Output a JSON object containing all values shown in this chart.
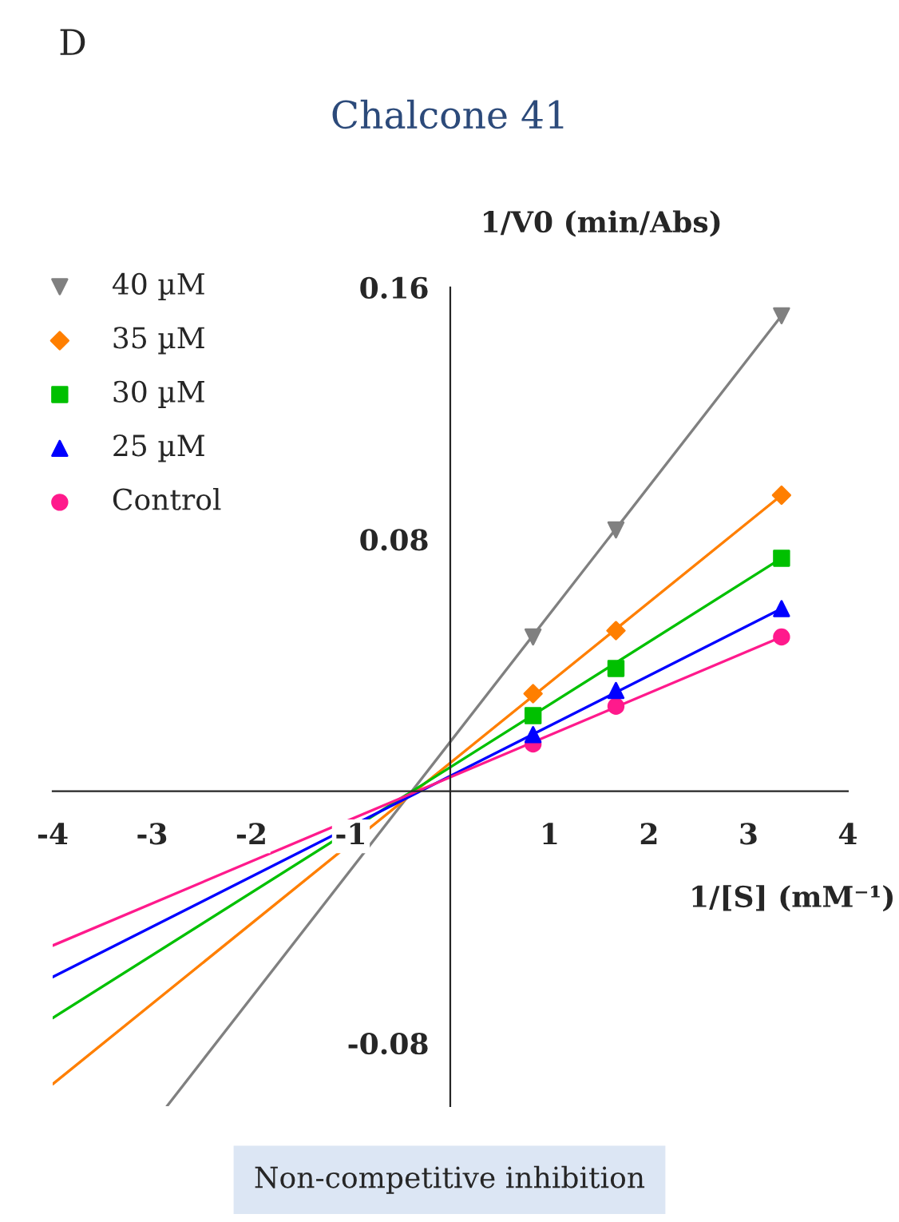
{
  "chart_data": {
    "type": "scatter",
    "title": "Chalcone 41",
    "xlabel": "1/[S] (mM⁻¹)",
    "ylabel": "1/V0 (min/Abs)",
    "xlim": [
      -4,
      4
    ],
    "ylim": [
      -0.1,
      0.16
    ],
    "xticks": [
      -4,
      -3,
      -2,
      -1,
      1,
      2,
      3,
      4
    ],
    "yticks": [
      -0.08,
      0.08,
      0.16
    ],
    "grid": false,
    "legend": "top left",
    "series": [
      {
        "name": "40 µM",
        "color": "#808080",
        "marker": "triangle_down",
        "x": [
          0.833,
          1.667,
          3.333
        ],
        "values": [
          0.049,
          0.083,
          0.151
        ]
      },
      {
        "name": "35 µM",
        "color": "#ff7f00",
        "marker": "diamond",
        "x": [
          0.833,
          1.667,
          3.333
        ],
        "values": [
          0.031,
          0.051,
          0.094
        ]
      },
      {
        "name": "30 µM",
        "color": "#00c000",
        "marker": "square",
        "x": [
          0.833,
          1.667,
          3.333
        ],
        "values": [
          0.024,
          0.039,
          0.074
        ]
      },
      {
        "name": "25 µM",
        "color": "#0000ff",
        "marker": "triangle",
        "x": [
          0.833,
          1.667,
          3.333
        ],
        "values": [
          0.018,
          0.032,
          0.058
        ]
      },
      {
        "name": "Control",
        "color": "#ff1a8c",
        "marker": "circle",
        "x": [
          0.833,
          1.667,
          3.333
        ],
        "values": [
          0.015,
          0.027,
          0.049
        ]
      },
      {
        "type": "line",
        "color": "#808080",
        "x": [
          -2.85,
          3.333
        ],
        "values": [
          -0.1,
          0.151
        ]
      },
      {
        "type": "line",
        "color": "#ff7f00",
        "x": [
          -4,
          3.333
        ],
        "values": [
          -0.093,
          0.094
        ]
      },
      {
        "type": "line",
        "color": "#00c000",
        "x": [
          -4,
          3.333
        ],
        "values": [
          -0.072,
          0.074
        ]
      },
      {
        "type": "line",
        "color": "#0000ff",
        "x": [
          -4,
          3.333
        ],
        "values": [
          -0.059,
          0.058
        ]
      },
      {
        "type": "line",
        "color": "#ff1a8c",
        "x": [
          -4,
          3.333
        ],
        "values": [
          -0.049,
          0.049
        ]
      }
    ],
    "annotations": [
      "D",
      "Non-competitive inhibition"
    ]
  }
}
